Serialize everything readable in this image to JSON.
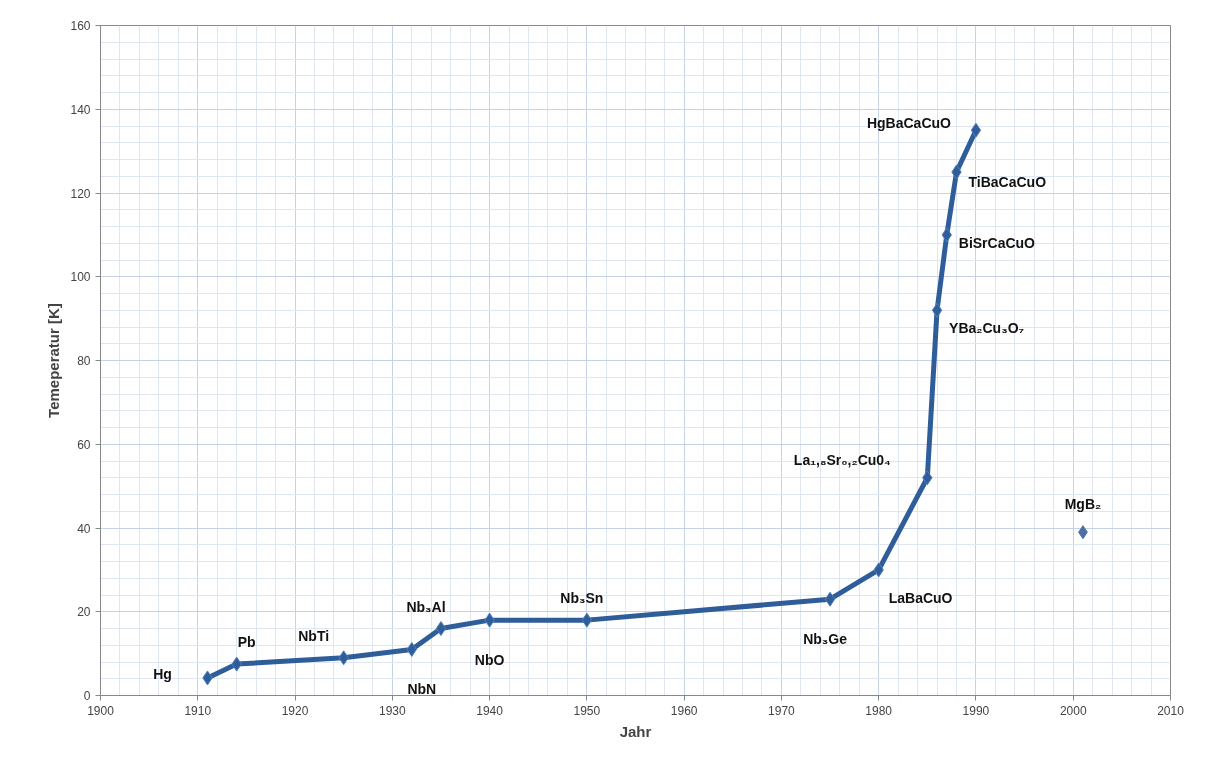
{
  "chart_data": {
    "type": "line",
    "xlabel": "Jahr",
    "ylabel": "Temeperatur [K]",
    "xlim": [
      1900,
      2010
    ],
    "xticks": [
      1900,
      1910,
      1920,
      1930,
      1940,
      1950,
      1960,
      1970,
      1980,
      1990,
      2000,
      2010
    ],
    "ylim": [
      0,
      160
    ],
    "yticks": [
      0,
      20,
      40,
      60,
      80,
      100,
      120,
      140,
      160
    ],
    "grid": true,
    "marker": "diamond",
    "line_style": "solid",
    "series": [
      {
        "color": "#2f5d99",
        "x": [
          1911,
          1914,
          1925,
          1932,
          1935,
          1940,
          1950,
          1975,
          1980,
          1985,
          1986,
          1987,
          1988,
          1990
        ],
        "values": [
          4.2,
          7.5,
          9,
          11,
          16,
          18,
          18,
          23,
          30,
          52,
          92,
          110,
          125,
          135
        ]
      },
      {
        "type": "scatter",
        "color": "#4a6fa5",
        "x": [
          2001
        ],
        "values": [
          39
        ]
      }
    ],
    "annotations": [
      {
        "text": "Hg",
        "x": 1911,
        "y": 4.2
      },
      {
        "text": "Pb",
        "x": 1914,
        "y": 7.5
      },
      {
        "text": "NbTi",
        "x": 1925,
        "y": 9
      },
      {
        "text": "NbN",
        "x": 1932,
        "y": 11
      },
      {
        "text": "Nb₃Al",
        "x": 1935,
        "y": 16
      },
      {
        "text": "NbO",
        "x": 1940,
        "y": 18
      },
      {
        "text": "Nb₃Sn",
        "x": 1950,
        "y": 18
      },
      {
        "text": "Nb₃Ge",
        "x": 1975,
        "y": 23
      },
      {
        "text": "LaBaCuO",
        "x": 1980,
        "y": 30
      },
      {
        "text": "La₁,₈Sr₀,₂Cu0₄",
        "x": 1985,
        "y": 52
      },
      {
        "text": "YBa₂Cu₃O₇",
        "x": 1986,
        "y": 92
      },
      {
        "text": "BiSrCaCuO",
        "x": 1987,
        "y": 110
      },
      {
        "text": "TiBaCaCuO",
        "x": 1988,
        "y": 125
      },
      {
        "text": "HgBaCaCuO",
        "x": 1990,
        "y": 135
      },
      {
        "text": "MgB₂",
        "x": 2001,
        "y": 39
      }
    ]
  }
}
